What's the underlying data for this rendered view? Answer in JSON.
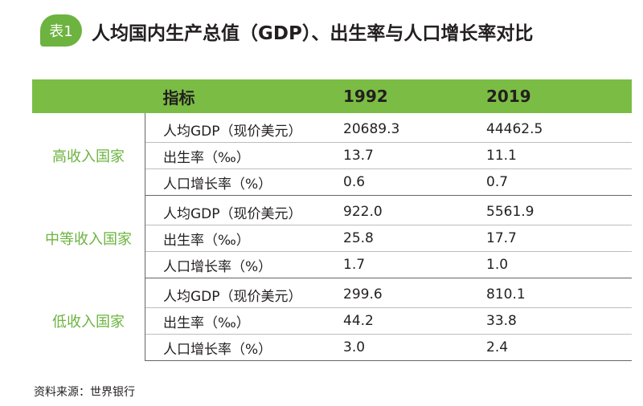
{
  "badge": "表1",
  "title": "人均国内生产总值（GDP）、出生率与人口增长率对比",
  "table": {
    "headers": [
      "指标",
      "1992",
      "2019"
    ],
    "groups": [
      {
        "name": "高收入国家",
        "rows": [
          {
            "indicator": "人均GDP（现价美元）",
            "y1992": "20689.3",
            "y2019": "44462.5"
          },
          {
            "indicator": "出生率（‰）",
            "y1992": "13.7",
            "y2019": "11.1"
          },
          {
            "indicator": "人口增长率（%）",
            "y1992": "0.6",
            "y2019": "0.7"
          }
        ]
      },
      {
        "name": "中等收入国家",
        "rows": [
          {
            "indicator": "人均GDP（现价美元）",
            "y1992": "922.0",
            "y2019": "5561.9"
          },
          {
            "indicator": "出生率（‰）",
            "y1992": "25.8",
            "y2019": "17.7"
          },
          {
            "indicator": "人口增长率（%）",
            "y1992": "1.7",
            "y2019": "1.0"
          }
        ]
      },
      {
        "name": "低收入国家",
        "rows": [
          {
            "indicator": "人均GDP（现价美元）",
            "y1992": "299.6",
            "y2019": "810.1"
          },
          {
            "indicator": "出生率（‰）",
            "y1992": "44.2",
            "y2019": "33.8"
          },
          {
            "indicator": "人口增长率（%）",
            "y1992": "3.0",
            "y2019": "2.4"
          }
        ]
      }
    ]
  },
  "source": "资料来源：世界银行",
  "colors": {
    "accent": "#6cb33f",
    "header_bg": "#7bbd44"
  }
}
